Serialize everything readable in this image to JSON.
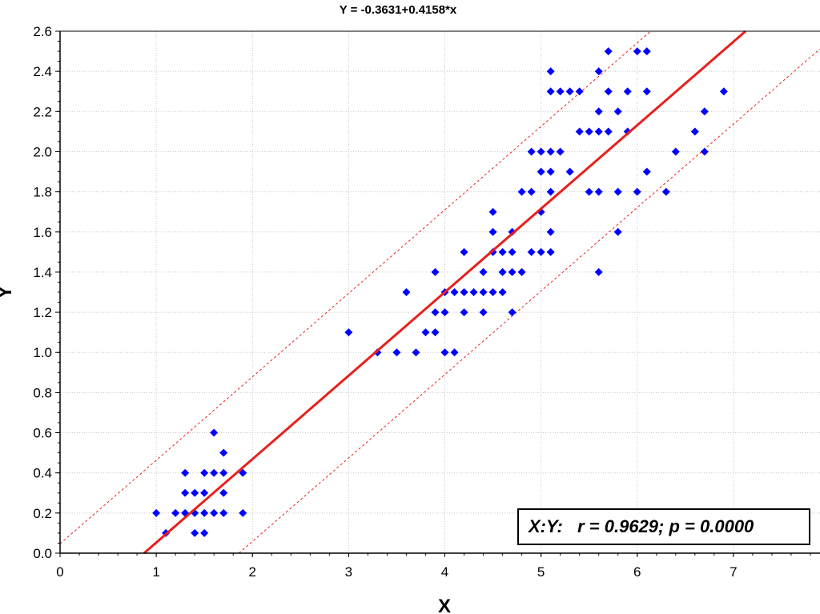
{
  "chart_data": {
    "type": "scatter",
    "title": "Y = -0.3631+0.4158*x",
    "xlabel": "X",
    "ylabel": "Y",
    "xlim": [
      0,
      7.9
    ],
    "ylim": [
      0,
      2.6
    ],
    "xticks": [
      "0",
      "1",
      "2",
      "3",
      "4",
      "5",
      "6",
      "7"
    ],
    "yticks": [
      "0.0",
      "0.2",
      "0.4",
      "0.6",
      "0.8",
      "1.0",
      "1.2",
      "1.4",
      "1.6",
      "1.8",
      "2.0",
      "2.2",
      "2.4",
      "2.6"
    ],
    "grid": true,
    "regression": {
      "intercept": -0.3631,
      "slope": 0.4158
    },
    "confidence_band": {
      "offset": 0.41,
      "style": "dashed"
    },
    "annotation": "X:Y:   r = 0.9629; p = 0.0000",
    "colors": {
      "points": "#0000ff",
      "fit_line": "#e8201c",
      "band": "#e8201c",
      "grid": "#c8c8c8"
    },
    "points": [
      [
        1.0,
        0.2
      ],
      [
        1.1,
        0.1
      ],
      [
        1.2,
        0.2
      ],
      [
        1.3,
        0.2
      ],
      [
        1.3,
        0.3
      ],
      [
        1.3,
        0.4
      ],
      [
        1.4,
        0.1
      ],
      [
        1.4,
        0.2
      ],
      [
        1.4,
        0.3
      ],
      [
        1.5,
        0.1
      ],
      [
        1.5,
        0.2
      ],
      [
        1.5,
        0.3
      ],
      [
        1.5,
        0.4
      ],
      [
        1.6,
        0.2
      ],
      [
        1.6,
        0.4
      ],
      [
        1.6,
        0.6
      ],
      [
        1.7,
        0.2
      ],
      [
        1.7,
        0.3
      ],
      [
        1.7,
        0.4
      ],
      [
        1.7,
        0.5
      ],
      [
        1.9,
        0.2
      ],
      [
        1.9,
        0.4
      ],
      [
        3.0,
        1.1
      ],
      [
        3.3,
        1.0
      ],
      [
        3.5,
        1.0
      ],
      [
        3.6,
        1.3
      ],
      [
        3.7,
        1.0
      ],
      [
        3.8,
        1.1
      ],
      [
        3.9,
        1.1
      ],
      [
        3.9,
        1.2
      ],
      [
        3.9,
        1.4
      ],
      [
        4.0,
        1.0
      ],
      [
        4.0,
        1.2
      ],
      [
        4.0,
        1.3
      ],
      [
        4.1,
        1.0
      ],
      [
        4.1,
        1.3
      ],
      [
        4.2,
        1.2
      ],
      [
        4.2,
        1.3
      ],
      [
        4.2,
        1.5
      ],
      [
        4.3,
        1.3
      ],
      [
        4.4,
        1.2
      ],
      [
        4.4,
        1.3
      ],
      [
        4.4,
        1.4
      ],
      [
        4.5,
        1.3
      ],
      [
        4.5,
        1.5
      ],
      [
        4.5,
        1.6
      ],
      [
        4.5,
        1.7
      ],
      [
        4.6,
        1.3
      ],
      [
        4.6,
        1.4
      ],
      [
        4.6,
        1.5
      ],
      [
        4.7,
        1.2
      ],
      [
        4.7,
        1.4
      ],
      [
        4.7,
        1.5
      ],
      [
        4.7,
        1.6
      ],
      [
        4.8,
        1.4
      ],
      [
        4.8,
        1.8
      ],
      [
        4.9,
        1.5
      ],
      [
        4.9,
        1.8
      ],
      [
        4.9,
        2.0
      ],
      [
        5.0,
        1.5
      ],
      [
        5.0,
        1.7
      ],
      [
        5.0,
        1.9
      ],
      [
        5.0,
        2.0
      ],
      [
        5.1,
        1.5
      ],
      [
        5.1,
        1.6
      ],
      [
        5.1,
        1.8
      ],
      [
        5.1,
        1.9
      ],
      [
        5.1,
        2.0
      ],
      [
        5.1,
        2.3
      ],
      [
        5.1,
        2.4
      ],
      [
        5.2,
        2.0
      ],
      [
        5.2,
        2.3
      ],
      [
        5.3,
        1.9
      ],
      [
        5.3,
        2.3
      ],
      [
        5.4,
        2.1
      ],
      [
        5.4,
        2.3
      ],
      [
        5.5,
        1.8
      ],
      [
        5.5,
        2.1
      ],
      [
        5.6,
        1.4
      ],
      [
        5.6,
        1.8
      ],
      [
        5.6,
        2.1
      ],
      [
        5.6,
        2.2
      ],
      [
        5.6,
        2.4
      ],
      [
        5.7,
        2.1
      ],
      [
        5.7,
        2.3
      ],
      [
        5.7,
        2.5
      ],
      [
        5.8,
        1.6
      ],
      [
        5.8,
        1.8
      ],
      [
        5.8,
        2.2
      ],
      [
        5.9,
        2.1
      ],
      [
        5.9,
        2.3
      ],
      [
        6.0,
        1.8
      ],
      [
        6.0,
        2.5
      ],
      [
        6.1,
        1.9
      ],
      [
        6.1,
        2.3
      ],
      [
        6.1,
        2.5
      ],
      [
        6.3,
        1.8
      ],
      [
        6.4,
        2.0
      ],
      [
        6.6,
        2.1
      ],
      [
        6.7,
        2.0
      ],
      [
        6.7,
        2.2
      ],
      [
        6.9,
        2.3
      ]
    ]
  }
}
